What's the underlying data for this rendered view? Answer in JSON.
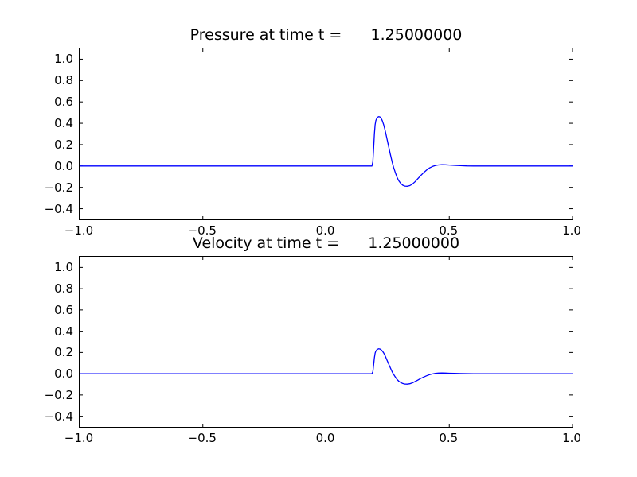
{
  "figure": {
    "background": "#ffffff",
    "axis_color": "#000000",
    "line_color": "#0000ff"
  },
  "chart_data": [
    {
      "id": "pressure",
      "type": "line",
      "title": "Pressure at time t =      1.25000000",
      "xlim": [
        -1.0,
        1.0
      ],
      "ylim": [
        -0.5,
        1.1
      ],
      "grid": false,
      "legend": null,
      "xtick_values": [
        -1.0,
        -0.5,
        0.0,
        0.5,
        1.0
      ],
      "xtick_labels": [
        "−1.0",
        "−0.5",
        "0.0",
        "0.5",
        "1.0"
      ],
      "ytick_values": [
        -0.4,
        -0.2,
        0.0,
        0.2,
        0.4,
        0.6,
        0.8,
        1.0
      ],
      "ytick_labels": [
        "−0.4",
        "−0.2",
        "0.0",
        "0.2",
        "0.4",
        "0.6",
        "0.8",
        "1.0"
      ],
      "series": [
        {
          "name": "pressure",
          "color": "#0000ff",
          "points": [
            [
              -1.0,
              0.0
            ],
            [
              0.186,
              0.0
            ],
            [
              0.19,
              0.04
            ],
            [
              0.193,
              0.16
            ],
            [
              0.196,
              0.3
            ],
            [
              0.199,
              0.385
            ],
            [
              0.202,
              0.425
            ],
            [
              0.206,
              0.448
            ],
            [
              0.21,
              0.458
            ],
            [
              0.214,
              0.462
            ],
            [
              0.218,
              0.46
            ],
            [
              0.223,
              0.448
            ],
            [
              0.228,
              0.425
            ],
            [
              0.234,
              0.385
            ],
            [
              0.24,
              0.33
            ],
            [
              0.247,
              0.258
            ],
            [
              0.254,
              0.182
            ],
            [
              0.261,
              0.108
            ],
            [
              0.268,
              0.04
            ],
            [
              0.274,
              -0.012
            ],
            [
              0.281,
              -0.062
            ],
            [
              0.288,
              -0.105
            ],
            [
              0.295,
              -0.138
            ],
            [
              0.303,
              -0.164
            ],
            [
              0.311,
              -0.18
            ],
            [
              0.32,
              -0.188
            ],
            [
              0.33,
              -0.19
            ],
            [
              0.34,
              -0.184
            ],
            [
              0.35,
              -0.17
            ],
            [
              0.361,
              -0.148
            ],
            [
              0.372,
              -0.12
            ],
            [
              0.384,
              -0.09
            ],
            [
              0.396,
              -0.062
            ],
            [
              0.408,
              -0.038
            ],
            [
              0.42,
              -0.018
            ],
            [
              0.432,
              -0.004
            ],
            [
              0.444,
              0.005
            ],
            [
              0.456,
              0.01
            ],
            [
              0.47,
              0.012
            ],
            [
              0.485,
              0.011
            ],
            [
              0.5,
              0.009
            ],
            [
              0.52,
              0.006
            ],
            [
              0.545,
              0.003
            ],
            [
              0.57,
              0.001
            ],
            [
              0.6,
              0.0
            ],
            [
              1.0,
              0.0
            ]
          ]
        }
      ]
    },
    {
      "id": "velocity",
      "type": "line",
      "title": "Velocity at time t =      1.25000000",
      "xlim": [
        -1.0,
        1.0
      ],
      "ylim": [
        -0.5,
        1.1
      ],
      "grid": false,
      "legend": null,
      "xtick_values": [
        -1.0,
        -0.5,
        0.0,
        0.5,
        1.0
      ],
      "xtick_labels": [
        "−1.0",
        "−0.5",
        "0.0",
        "0.5",
        "1.0"
      ],
      "ytick_values": [
        -0.4,
        -0.2,
        0.0,
        0.2,
        0.4,
        0.6,
        0.8,
        1.0
      ],
      "ytick_labels": [
        "−0.4",
        "−0.2",
        "0.0",
        "0.2",
        "0.4",
        "0.6",
        "0.8",
        "1.0"
      ],
      "series": [
        {
          "name": "velocity",
          "color": "#0000ff",
          "points": [
            [
              -1.0,
              0.0
            ],
            [
              0.186,
              0.0
            ],
            [
              0.19,
              0.02
            ],
            [
              0.193,
              0.08
            ],
            [
              0.196,
              0.15
            ],
            [
              0.199,
              0.193
            ],
            [
              0.202,
              0.213
            ],
            [
              0.206,
              0.225
            ],
            [
              0.21,
              0.231
            ],
            [
              0.214,
              0.235
            ],
            [
              0.218,
              0.233
            ],
            [
              0.223,
              0.227
            ],
            [
              0.228,
              0.215
            ],
            [
              0.234,
              0.195
            ],
            [
              0.24,
              0.167
            ],
            [
              0.247,
              0.13
            ],
            [
              0.254,
              0.092
            ],
            [
              0.261,
              0.055
            ],
            [
              0.268,
              0.02
            ],
            [
              0.274,
              -0.006
            ],
            [
              0.281,
              -0.031
            ],
            [
              0.288,
              -0.053
            ],
            [
              0.295,
              -0.07
            ],
            [
              0.303,
              -0.083
            ],
            [
              0.311,
              -0.092
            ],
            [
              0.32,
              -0.097
            ],
            [
              0.33,
              -0.098
            ],
            [
              0.34,
              -0.094
            ],
            [
              0.35,
              -0.086
            ],
            [
              0.361,
              -0.074
            ],
            [
              0.372,
              -0.06
            ],
            [
              0.384,
              -0.045
            ],
            [
              0.396,
              -0.031
            ],
            [
              0.408,
              -0.019
            ],
            [
              0.42,
              -0.009
            ],
            [
              0.432,
              -0.002
            ],
            [
              0.444,
              0.003
            ],
            [
              0.456,
              0.006
            ],
            [
              0.47,
              0.007
            ],
            [
              0.485,
              0.006
            ],
            [
              0.5,
              0.005
            ],
            [
              0.52,
              0.003
            ],
            [
              0.545,
              0.002
            ],
            [
              0.57,
              0.001
            ],
            [
              0.6,
              0.0
            ],
            [
              1.0,
              0.0
            ]
          ]
        }
      ]
    }
  ]
}
